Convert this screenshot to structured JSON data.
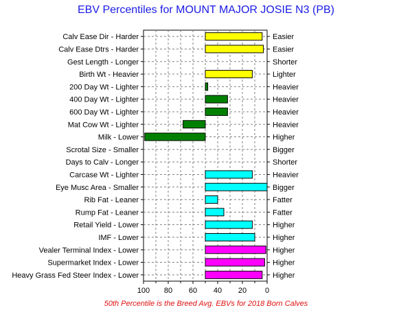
{
  "chart_data": {
    "type": "bar",
    "orientation": "horizontal",
    "title": "EBV Percentiles for MOUNT MAJOR JOSIE N3 (PB)",
    "footnote": "50th Percentile is the Breed Avg. EBVs for 2018 Born Calves",
    "xlim": [
      100,
      0
    ],
    "xticks": [
      100,
      80,
      60,
      40,
      20,
      0
    ],
    "grid": true,
    "reference": 50,
    "colors": {
      "yellow": "#ffff00",
      "green": "#008000",
      "cyan": "#00ffff",
      "magenta": "#ff00ff"
    },
    "rows": [
      {
        "label": "Calv Ease Dir - Harder",
        "right": "Easier",
        "value": 4,
        "color": "yellow"
      },
      {
        "label": "Calv Ease Dtrs - Harder",
        "right": "Easier",
        "value": 3,
        "color": "yellow"
      },
      {
        "label": "Gest Length - Longer",
        "right": "Shorter",
        "value": null,
        "color": "yellow"
      },
      {
        "label": "Birth Wt - Heavier",
        "right": "Lighter",
        "value": 12,
        "color": "yellow"
      },
      {
        "label": "200 Day Wt - Lighter",
        "right": "Heavier",
        "value": 48,
        "color": "green"
      },
      {
        "label": "400 Day Wt - Lighter",
        "right": "Heavier",
        "value": 32,
        "color": "green"
      },
      {
        "label": "600 Day Wt - Lighter",
        "right": "Heavier",
        "value": 32,
        "color": "green"
      },
      {
        "label": "Mat Cow Wt - Lighter",
        "right": "Heavier",
        "value": 68,
        "color": "green"
      },
      {
        "label": "Milk - Lower",
        "right": "Higher",
        "value": 99,
        "color": "green"
      },
      {
        "label": "Scrotal Size - Smaller",
        "right": "Bigger",
        "value": null,
        "color": "cyan"
      },
      {
        "label": "Days to Calv - Longer",
        "right": "Shorter",
        "value": null,
        "color": "cyan"
      },
      {
        "label": "Carcase Wt - Lighter",
        "right": "Heavier",
        "value": 12,
        "color": "cyan"
      },
      {
        "label": "Eye Musc Area - Smaller",
        "right": "Bigger",
        "value": 0,
        "color": "cyan"
      },
      {
        "label": "Rib Fat - Leaner",
        "right": "Fatter",
        "value": 40,
        "color": "cyan"
      },
      {
        "label": "Rump Fat - Leaner",
        "right": "Fatter",
        "value": 35,
        "color": "cyan"
      },
      {
        "label": "Retail Yield - Lower",
        "right": "Higher",
        "value": 12,
        "color": "cyan"
      },
      {
        "label": "IMF - Lower",
        "right": "Higher",
        "value": 10,
        "color": "cyan"
      },
      {
        "label": "Vealer Terminal Index - Lower",
        "right": "Higher",
        "value": 1,
        "color": "magenta"
      },
      {
        "label": "Supermarket Index - Lower",
        "right": "Higher",
        "value": 2,
        "color": "magenta"
      },
      {
        "label": "Heavy Grass Fed Steer Index - Lower",
        "right": "Higher",
        "value": 4,
        "color": "magenta"
      }
    ]
  }
}
